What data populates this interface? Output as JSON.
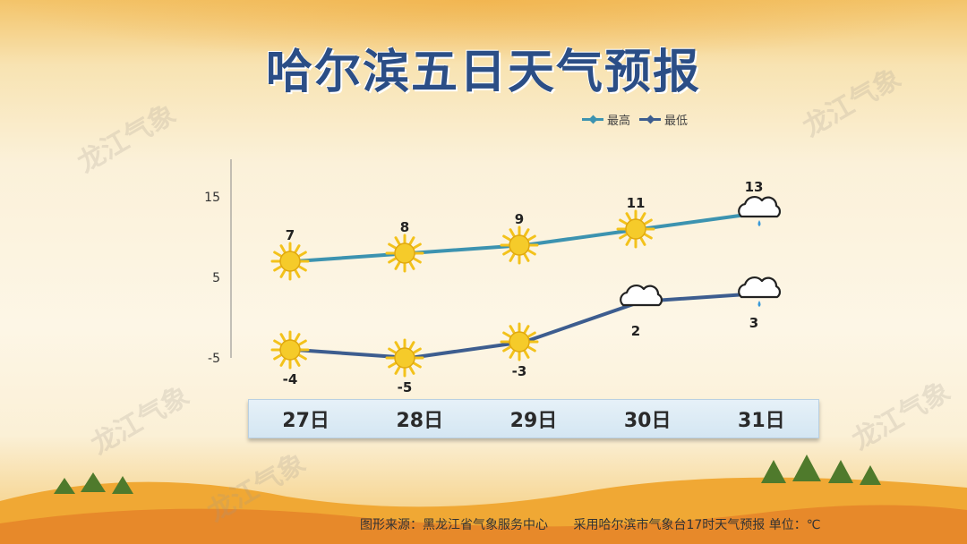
{
  "title": "哈尔滨五日天气预报",
  "watermark_text": "龙江气象",
  "legend": {
    "high_label": "最高",
    "low_label": "最低",
    "high_color": "#3c93b0",
    "low_color": "#3d5d8f"
  },
  "footer": {
    "source": "图形来源：黑龙江省气象服务中心",
    "note": "采用哈尔滨市气象台17时天气预报 单位：℃"
  },
  "chart_data": {
    "type": "line",
    "categories": [
      "27日",
      "28日",
      "29日",
      "30日",
      "31日"
    ],
    "series": [
      {
        "name": "最高",
        "values": [
          7,
          8,
          9,
          11,
          13
        ],
        "icons": [
          "sun-icon",
          "sun-icon",
          "sun-icon",
          "sun-icon",
          "cloud-rain-icon"
        ]
      },
      {
        "name": "最低",
        "values": [
          -4,
          -5,
          -3,
          2,
          3
        ],
        "icons": [
          "sun-icon",
          "sun-icon",
          "sun-icon",
          "cloud-icon",
          "cloud-rain-icon"
        ]
      }
    ],
    "y_ticks": [
      "15",
      "5",
      "-5"
    ],
    "ylim": [
      -7,
      19
    ],
    "legend_position": "top-right",
    "grid": false
  }
}
